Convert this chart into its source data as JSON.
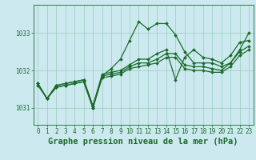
{
  "title": "Graphe pression niveau de la mer (hPa)",
  "bg_color": "#cce9f0",
  "grid_color": "#99ccbb",
  "line_color": "#1a6b2a",
  "xlim": [
    -0.5,
    23.5
  ],
  "ylim": [
    1030.55,
    1033.75
  ],
  "yticks": [
    1031,
    1032,
    1033
  ],
  "xticks": [
    0,
    1,
    2,
    3,
    4,
    5,
    6,
    7,
    8,
    9,
    10,
    11,
    12,
    13,
    14,
    15,
    16,
    17,
    18,
    19,
    20,
    21,
    22,
    23
  ],
  "series": [
    [
      1031.6,
      1031.25,
      1031.6,
      1031.65,
      1031.7,
      1031.75,
      1031.05,
      1031.85,
      1032.05,
      1032.3,
      1032.8,
      1033.3,
      1033.1,
      1033.25,
      1033.25,
      1032.95,
      1032.5,
      1032.2,
      1032.2,
      1032.2,
      1032.1,
      1032.2,
      1032.55,
      1033.0
    ],
    [
      1031.65,
      1031.25,
      1031.6,
      1031.65,
      1031.7,
      1031.75,
      1031.05,
      1031.9,
      1031.95,
      1032.0,
      1032.15,
      1032.3,
      1032.3,
      1032.45,
      1032.55,
      1031.75,
      1032.35,
      1032.55,
      1032.35,
      1032.3,
      1032.2,
      1032.4,
      1032.75,
      1032.8
    ],
    [
      1031.65,
      1031.25,
      1031.55,
      1031.6,
      1031.65,
      1031.7,
      1031.0,
      1031.85,
      1031.9,
      1031.95,
      1032.1,
      1032.2,
      1032.2,
      1032.3,
      1032.45,
      1032.45,
      1032.15,
      1032.1,
      1032.1,
      1032.05,
      1032.0,
      1032.2,
      1032.5,
      1032.65
    ],
    [
      1031.65,
      1031.25,
      1031.55,
      1031.6,
      1031.65,
      1031.7,
      1031.0,
      1031.8,
      1031.85,
      1031.9,
      1032.05,
      1032.1,
      1032.15,
      1032.2,
      1032.35,
      1032.35,
      1032.05,
      1032.0,
      1032.0,
      1031.95,
      1031.95,
      1032.1,
      1032.4,
      1032.55
    ]
  ],
  "marker": "D",
  "markersize": 2.0,
  "linewidth": 0.9,
  "title_fontsize": 7.5,
  "tick_fontsize": 5.5
}
